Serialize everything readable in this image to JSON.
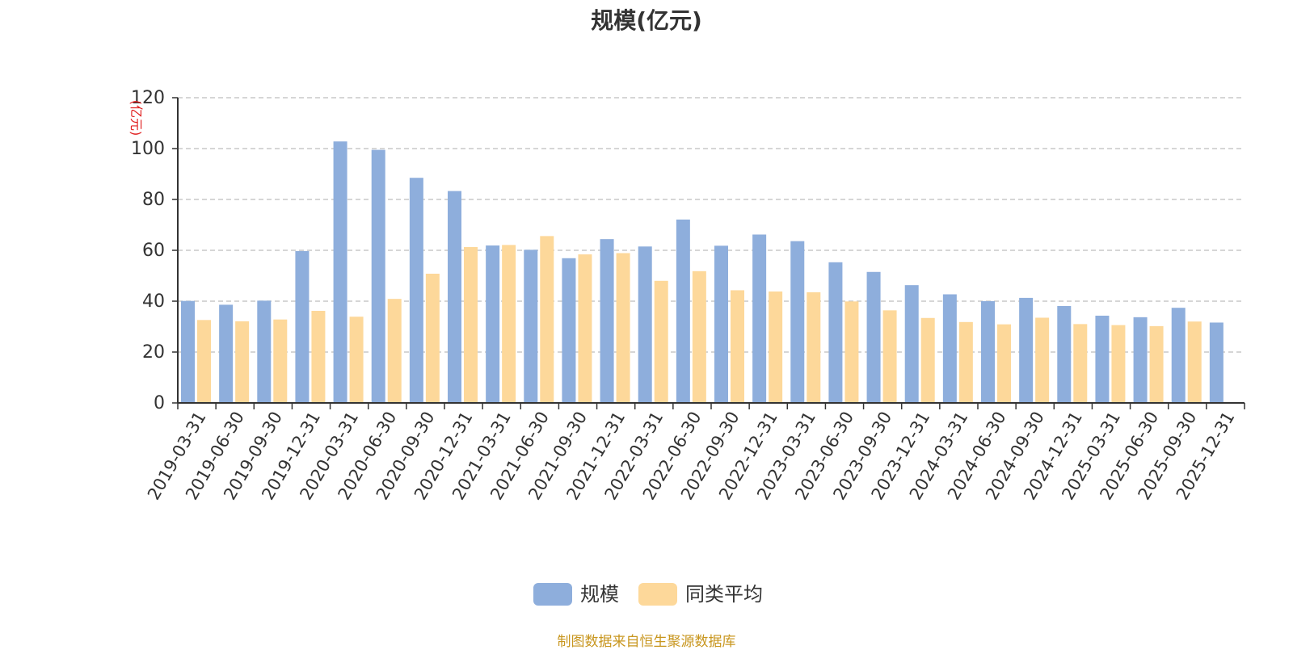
{
  "chart_data": {
    "type": "bar",
    "title": "规模(亿元)",
    "ylabel": "(亿元)",
    "xlabel": "",
    "ylim": [
      0,
      120
    ],
    "yticks": [
      0,
      20,
      40,
      60,
      80,
      100,
      120
    ],
    "grid": true,
    "legend_position": "bottom-center",
    "categories": [
      "2019-03-31",
      "2019-06-30",
      "2019-09-30",
      "2019-12-31",
      "2020-03-31",
      "2020-06-30",
      "2020-09-30",
      "2020-12-31",
      "2021-03-31",
      "2021-06-30",
      "2021-09-30",
      "2021-12-31",
      "2022-03-31",
      "2022-06-30",
      "2022-09-30",
      "2022-12-31",
      "2023-03-31",
      "2023-06-30",
      "2023-09-30",
      "2023-12-31",
      "2024-03-31",
      "2024-06-30",
      "2024-09-30",
      "2024-12-31",
      "2025-03-31",
      "2025-06-30",
      "2025-09-30",
      "2025-12-31"
    ],
    "series": [
      {
        "name": "规模",
        "color": "#8eaedc",
        "values": [
          40.1,
          38.6,
          40.2,
          59.7,
          102.8,
          99.5,
          88.5,
          83.3,
          61.9,
          60.2,
          56.9,
          64.4,
          61.5,
          72.1,
          61.8,
          66.2,
          63.6,
          55.3,
          51.5,
          46.3,
          42.7,
          40.0,
          41.3,
          38.1,
          34.3,
          33.7,
          37.4,
          31.6
        ]
      },
      {
        "name": "同类平均",
        "color": "#fdd89a",
        "values": [
          32.6,
          32.1,
          32.8,
          36.2,
          33.9,
          40.9,
          50.8,
          61.3,
          62.1,
          65.6,
          58.4,
          58.9,
          48.0,
          51.8,
          44.3,
          43.8,
          43.5,
          39.9,
          36.4,
          33.4,
          31.8,
          30.9,
          33.5,
          31.0,
          30.6,
          30.2,
          32.0,
          null
        ]
      }
    ]
  },
  "source_note": "制图数据来自恒生聚源数据库"
}
